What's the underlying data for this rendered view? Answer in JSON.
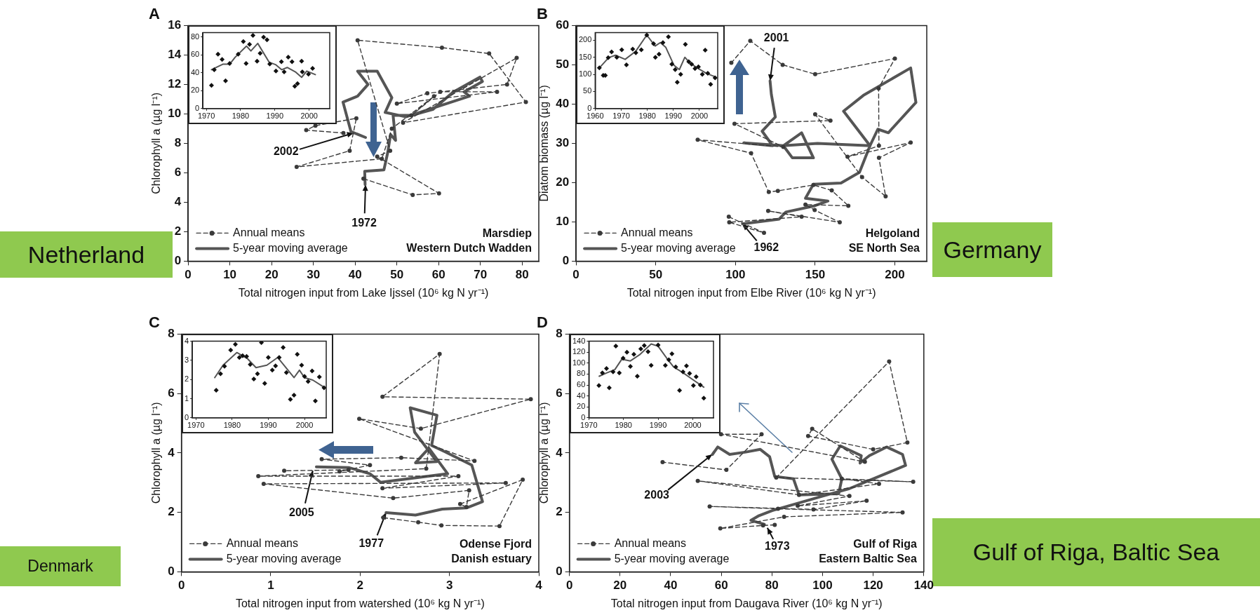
{
  "chart_data": [
    {
      "type": "line",
      "title": "A",
      "xlabel": "Total nitrogen input from Lake Ijssel (10⁶ kg N yr⁻¹)",
      "ylabel": "Chlorophyll a (µg l⁻¹)",
      "xlim": [
        0,
        84
      ],
      "ylim": [
        0,
        16
      ],
      "xticks": [
        0,
        10,
        20,
        30,
        40,
        50,
        60,
        70,
        80
      ],
      "yticks": [
        0,
        2,
        4,
        6,
        8,
        10,
        12,
        14,
        16
      ],
      "grid": false,
      "legend": "bottom left",
      "series": [
        {
          "name": "Annual means",
          "color": "#3a3a3a",
          "line_style": "dashed",
          "marker": "circle",
          "x": [
            42.0,
            53.8,
            60.1,
            45.3,
            48.4,
            40.6,
            60.8,
            72.1,
            80.9,
            51.5,
            78.7,
            76.4,
            57.3,
            50.0,
            74.0,
            60.4,
            53.5,
            58.9,
            48.8,
            46.4,
            26.0,
            38.7,
            40.3,
            30.5,
            28.3,
            37.2
          ],
          "values": [
            5.6,
            4.5,
            4.6,
            7.1,
            7.5,
            15.0,
            14.5,
            14.1,
            10.8,
            9.4,
            13.8,
            12.0,
            11.4,
            10.7,
            11.5,
            11.5,
            9.9,
            11.2,
            9.0,
            6.95,
            6.4,
            7.5,
            9.7,
            9.2,
            8.9,
            8.7
          ]
        },
        {
          "name": "5-year moving average",
          "color": "#555555",
          "line_style": "solid",
          "marker": "none",
          "x": [
            42.4,
            42.3,
            46.9,
            47.8,
            48.5,
            49.7,
            49.1,
            53.5,
            58.6,
            63.6,
            69.9,
            70.5,
            66.1,
            67.4,
            52.2,
            47.2,
            48.8,
            45.3,
            40.6,
            43.1,
            40.6,
            37.1,
            39.0,
            42.5
          ],
          "values": [
            5.2,
            6.1,
            6.2,
            7.35,
            8.6,
            8.2,
            9.9,
            9.9,
            10.3,
            11.5,
            12.5,
            12.2,
            11.5,
            11.2,
            9.8,
            10.1,
            11.1,
            12.9,
            12.9,
            12.0,
            11.2,
            10.8,
            8.8,
            8.4
          ]
        }
      ],
      "annotations": [
        {
          "text": "2002",
          "x": 39.6,
          "y": 8.7
        },
        {
          "text": "1972",
          "x": 42.5,
          "y": 5.2
        },
        "Marsdiep",
        "Western Dutch Wadden",
        "Netherland"
      ]
    },
    {
      "type": "line",
      "xlim": [
        1969,
        2006
      ],
      "ylim": [
        0,
        85
      ],
      "xticks": [
        1970,
        1980,
        1990,
        2000
      ],
      "yticks": [
        0,
        20,
        40,
        60,
        80
      ],
      "grid": false,
      "series": [
        {
          "type": "scatter",
          "color": "#111111",
          "marker": "diamond",
          "x": [
            1971.5,
            1972.3,
            1973.4,
            1974.6,
            1975.6,
            1976.8,
            1979.3,
            1980.8,
            1981.6,
            1982.6,
            1983.6,
            1984.8,
            1985.7,
            1986.7,
            1987.7,
            1988.5,
            1990.3,
            1991.9,
            1992.7,
            1993.9,
            1995.0,
            1995.8,
            1996.6,
            1997.8,
            1998.0,
            1999.8,
            2001.0
          ],
          "values": [
            26,
            43.5,
            61,
            55,
            31,
            50.5,
            61,
            75,
            50.5,
            72,
            82,
            53,
            62,
            80,
            77,
            50,
            42,
            52.5,
            41,
            57.5,
            52.5,
            25,
            28,
            53,
            41,
            38.5,
            45
          ]
        },
        {
          "type": "line",
          "color": "#555555",
          "line_style": "solid",
          "marker": "none",
          "x": [
            1971.5,
            1974.8,
            1976.8,
            1978.4,
            1981.7,
            1983.0,
            1985.0,
            1988.3,
            1990.3,
            1992.0,
            1993.6,
            1996.1,
            1997.8,
            1999.3,
            2001.8
          ],
          "values": [
            43.5,
            49.7,
            49.7,
            57.5,
            70,
            64.5,
            73,
            52,
            49,
            43.5,
            46,
            40.7,
            35,
            42,
            38
          ]
        }
      ]
    },
    {
      "type": "line",
      "title": "B",
      "xlabel": "Total nitrogen input from Elbe River (10⁶ kg N yr⁻¹)",
      "ylabel": "Diatom biomass (µg l⁻¹)",
      "xlim": [
        0,
        220
      ],
      "ylim": [
        0,
        60
      ],
      "xticks": [
        0,
        50,
        100,
        150,
        200
      ],
      "yticks": [
        0,
        10,
        20,
        30,
        40,
        50,
        60
      ],
      "grid": false,
      "legend": "bottom left",
      "series": [
        {
          "name": "Annual means",
          "color": "#3a3a3a",
          "line_style": "dashed",
          "marker": "circle",
          "x": [
            95.8,
            117.9,
            96.1,
            141.5,
            120.5,
            165.4,
            149.7,
            143.9,
            170.8,
            160.4,
            148.9,
            126.6,
            120.9,
            109.8,
            76.3,
            130.0,
            99.4,
            159.6,
            150.0,
            179.4,
            194.2,
            190.0,
            209.9,
            170.3,
            190.0,
            189.8,
            200.0,
            150.0,
            129.6,
            109.3,
            97.4
          ],
          "values": [
            11.3,
            7.2,
            9.9,
            11.3,
            12.8,
            9.9,
            13.0,
            14.4,
            14.1,
            18.0,
            19.4,
            17.9,
            17.6,
            27.5,
            30.9,
            29.1,
            35.0,
            35.8,
            37.4,
            21.4,
            16.5,
            26.3,
            30.2,
            26.6,
            29.4,
            44.0,
            51.6,
            47.6,
            50.0,
            56.1,
            50.5
          ]
        },
        {
          "name": "5-year moving average",
          "color": "#555555",
          "line_style": "solid",
          "marker": "none",
          "x": [
            104.4,
            127.4,
            131.6,
            149.7,
            158.0,
            143.9,
            148.9,
            166.2,
            177.8,
            184.4,
            189.3,
            195.9,
            213.2,
            209.9,
            180.2,
            167.8,
            184.4,
            151.4,
            130.0,
            141.5,
            148.9,
            135.7,
            130.0,
            105.2,
            123.3,
            116.7,
            125.0,
            122.5,
            121.7
          ],
          "values": [
            9.5,
            10.7,
            12.5,
            14.1,
            15.3,
            16.0,
            19.6,
            19.9,
            22.6,
            29.4,
            33.6,
            32.7,
            40.4,
            49.2,
            42.2,
            38.2,
            29.4,
            30.0,
            29.4,
            32.7,
            26.3,
            26.3,
            29.4,
            30.1,
            29.4,
            33.1,
            36.7,
            42.5,
            45.9
          ]
        }
      ],
      "annotations": [
        {
          "text": "2001",
          "x": 121.7,
          "y": 45.9
        },
        {
          "text": "1962",
          "x": 104.4,
          "y": 9.5
        },
        "Helgoland",
        "SE North Sea",
        "Germany"
      ]
    },
    {
      "type": "line",
      "xlim": [
        1960,
        2007
      ],
      "ylim": [
        0,
        222
      ],
      "xticks": [
        1960,
        1970,
        1980,
        1990,
        2000
      ],
      "yticks": [
        0,
        50,
        100,
        150,
        200
      ],
      "grid": false,
      "series": [
        {
          "type": "scatter",
          "color": "#111111",
          "marker": "diamond",
          "x": [
            1961.6,
            1963.1,
            1963.9,
            1965.0,
            1966.3,
            1968.3,
            1970.2,
            1972.0,
            1974.4,
            1975.6,
            1977.7,
            1979.8,
            1982.4,
            1983.1,
            1984.5,
            1986.0,
            1988.1,
            1989.4,
            1990.7,
            1991.5,
            1992.8,
            1994.6,
            1995.9,
            1997.0,
            1998.3,
            1999.6,
            2001.1,
            2002.2,
            2003.2,
            2004.3,
            2006.0
          ],
          "values": [
            119,
            97,
            97,
            149,
            166,
            150,
            172,
            128,
            174,
            163,
            172,
            215,
            190,
            150,
            159,
            193,
            210,
            130,
            114,
            77,
            100,
            188,
            137,
            130,
            117,
            122,
            100,
            171,
            103,
            71,
            90
          ]
        },
        {
          "type": "line",
          "color": "#555555",
          "line_style": "solid",
          "marker": "none",
          "x": [
            1961.6,
            1965.2,
            1967.8,
            1971.5,
            1975.6,
            1979.8,
            1983.0,
            1985.0,
            1987.1,
            1990.2,
            1992.3,
            1994.4,
            1996.5,
            1999.6,
            2002.7,
            2006.3
          ],
          "values": [
            119,
            149,
            156,
            144,
            168,
            215,
            183,
            193,
            179,
            127,
            114,
            150,
            132,
            117,
            103,
            92
          ]
        }
      ]
    },
    {
      "type": "line",
      "title": "C",
      "xlabel": "Total nitrogen input from watershed (10⁶ kg N yr⁻¹)",
      "ylabel": "Chlorophyll a (µg l⁻¹)",
      "xlim": [
        0,
        4
      ],
      "ylim": [
        0,
        8
      ],
      "xticks": [
        0,
        1,
        2,
        3,
        4
      ],
      "yticks": [
        0,
        2,
        4,
        6,
        8
      ],
      "grid": false,
      "legend": "bottom left",
      "series": [
        {
          "name": "Annual means",
          "color": "#3a3a3a",
          "line_style": "dashed",
          "marker": "circle",
          "x": [
            2.26,
            2.65,
            2.91,
            3.56,
            3.82,
            3.12,
            3.19,
            3.22,
            2.37,
            0.92,
            3.63,
            2.25,
            3.1,
            0.86,
            2.74,
            2.89,
            2.25,
            3.91,
            2.68,
            1.99,
            3.28,
            2.46,
            1.57,
            2.11,
            1.77,
            1.87,
            1.15
          ],
          "values": [
            1.82,
            1.67,
            1.56,
            1.54,
            3.1,
            2.28,
            2.18,
            2.74,
            2.48,
            2.96,
            2.99,
            2.81,
            3.22,
            3.22,
            3.47,
            7.33,
            5.89,
            5.81,
            4.82,
            5.15,
            3.73,
            3.84,
            3.79,
            3.59,
            3.38,
            3.43,
            3.4
          ]
        },
        {
          "name": "5-year moving average",
          "color": "#555555",
          "line_style": "solid",
          "marker": "none",
          "x": [
            2.29,
            2.62,
            2.92,
            3.19,
            3.37,
            3.25,
            2.95,
            2.8,
            2.86,
            2.56,
            2.61,
            2.86,
            2.62,
            2.77,
            2.98,
            2.23,
            2.11,
            1.87,
            1.51
          ],
          "values": [
            1.99,
            1.91,
            2.11,
            2.15,
            2.36,
            3.59,
            4.04,
            4.25,
            5.27,
            5.52,
            4.7,
            3.71,
            3.67,
            4.16,
            3.3,
            3.01,
            3.3,
            3.51,
            3.53
          ]
        }
      ],
      "annotations": [
        {
          "text": "2005",
          "x": 1.47,
          "y": 3.4
        },
        {
          "text": "1977",
          "x": 2.29,
          "y": 1.99
        },
        "Odense Fjord",
        "Danish estuary",
        "Denmark"
      ]
    },
    {
      "type": "line",
      "xlim": [
        1969,
        2006
      ],
      "ylim": [
        0,
        4
      ],
      "xticks": [
        1970,
        1980,
        1990,
        2000
      ],
      "yticks": [
        0,
        1,
        2,
        3,
        4
      ],
      "grid": false,
      "series": [
        {
          "type": "scatter",
          "color": "#111111",
          "marker": "diamond",
          "x": [
            1975.6,
            1976.8,
            1977.9,
            1979.6,
            1980.9,
            1982.0,
            1982.9,
            1984.0,
            1985.0,
            1986.0,
            1987.0,
            1988.1,
            1989.0,
            1990.0,
            1991.1,
            1992.0,
            1993.0,
            1994.1,
            1995.0,
            1996.1,
            1997.1,
            1998.0,
            1999.2,
            2000.0,
            2001.0,
            2002.1,
            2003.0,
            2004.1,
            2005.4
          ],
          "values": [
            1.44,
            2.3,
            2.69,
            3.54,
            3.84,
            3.15,
            3.24,
            3.21,
            2.79,
            2.03,
            2.3,
            3.93,
            1.8,
            3.15,
            2.49,
            2.71,
            3.15,
            3.67,
            2.36,
            0.96,
            1.18,
            3.32,
            2.75,
            2.16,
            1.9,
            2.45,
            0.88,
            2.14,
            1.57
          ]
        },
        {
          "type": "line",
          "color": "#555555",
          "line_style": "solid",
          "marker": "none",
          "x": [
            1975.2,
            1977.5,
            1981.3,
            1984.3,
            1986.6,
            1989.6,
            1992.6,
            1997.1,
            1998.6,
            2000.0,
            2002.3,
            2005.6
          ],
          "values": [
            2.1,
            2.75,
            3.41,
            3.08,
            2.62,
            2.75,
            3.15,
            2.1,
            2.49,
            2.1,
            1.97,
            1.57
          ]
        }
      ]
    },
    {
      "type": "line",
      "title": "D",
      "xlabel": "Total nitrogen input from Daugava River (10⁶ kg N yr⁻¹)",
      "ylabel": "Chlorophyll a (µg l⁻¹)",
      "xlim": [
        0,
        140
      ],
      "ylim": [
        0,
        8
      ],
      "xticks": [
        0,
        20,
        40,
        60,
        80,
        100,
        120,
        140
      ],
      "yticks": [
        0,
        2,
        4,
        6,
        8
      ],
      "grid": false,
      "legend": "bottom left",
      "series": [
        {
          "name": "Annual means",
          "color": "#3a3a3a",
          "line_style": "dashed",
          "marker": "circle",
          "x": [
            81.1,
            76.5,
            59.6,
            84.8,
            131.6,
            82.4,
            55.4,
            96.4,
            117.4,
            90.2,
            110.6,
            50.7,
            90.7,
            122.3,
            107.6,
            135.8,
            81.7,
            126.3,
            133.5,
            120.0,
            94.3,
            95.9,
            116.7,
            59.9,
            75.9,
            62.0,
            36.8
          ],
          "values": [
            1.58,
            1.56,
            1.46,
            1.85,
            2.0,
            2.12,
            2.2,
            2.1,
            2.39,
            2.22,
            2.55,
            3.06,
            2.59,
            2.96,
            3.13,
            3.03,
            3.17,
            7.08,
            4.35,
            4.12,
            4.57,
            4.81,
            3.7,
            4.63,
            4.63,
            3.43,
            3.69
          ]
        },
        {
          "name": "5-year moving average",
          "color": "#555555",
          "line_style": "solid",
          "marker": "none",
          "x": [
            77.0,
            71.7,
            74.9,
            80.1,
            100.1,
            110.6,
            132.8,
            131.6,
            125.3,
            118.5,
            114.8,
            115.3,
            107.0,
            103.7,
            107.6,
            106.4,
            90.7,
            88.5,
            81.1,
            79.1,
            75.4,
            69.7,
            63.3,
            58.6,
            56.5
          ],
          "values": [
            1.6,
            1.73,
            1.89,
            2.06,
            2.55,
            2.8,
            3.58,
            3.95,
            4.2,
            3.91,
            3.66,
            3.91,
            4.24,
            3.79,
            3.13,
            2.63,
            2.59,
            3.13,
            3.21,
            3.87,
            4.12,
            4.03,
            3.95,
            4.2,
            3.95
          ]
        }
      ],
      "annotations": [
        {
          "text": "2003",
          "x": 56.4,
          "y": 3.95
        },
        {
          "text": "1973",
          "x": 78.2,
          "y": 1.48
        },
        "Gulf of Riga",
        "Eastern Baltic Sea",
        "Gulf of Riga, Baltic Sea"
      ]
    },
    {
      "type": "line",
      "xlim": [
        1970,
        2006
      ],
      "ylim": [
        0,
        140
      ],
      "xticks": [
        1970,
        1980,
        1990,
        2000
      ],
      "yticks": [
        0,
        20,
        40,
        60,
        80,
        100,
        120,
        140
      ],
      "grid": false,
      "series": [
        {
          "type": "scatter",
          "color": "#111111",
          "marker": "diamond",
          "x": [
            1972.9,
            1973.9,
            1975.1,
            1975.9,
            1977.0,
            1977.8,
            1978.8,
            1979.9,
            1981.0,
            1982.0,
            1983.0,
            1984.0,
            1985.0,
            1986.0,
            1987.1,
            1988.0,
            1990.0,
            1992.1,
            1993.1,
            1994.0,
            1995.1,
            1996.2,
            1997.2,
            1998.2,
            1999.1,
            2000.2,
            2001.0,
            2002.2,
            2003.2
          ],
          "values": [
            59,
            82,
            90,
            55,
            84,
            131,
            82,
            109,
            120,
            94,
            116,
            76,
            126,
            132,
            121,
            96,
            133,
            96,
            106,
            117,
            93,
            50,
            84,
            95,
            81,
            59,
            75,
            60,
            36
          ]
        },
        {
          "type": "line",
          "color": "#555555",
          "line_style": "solid",
          "marker": "none",
          "x": [
            1973.0,
            1975.1,
            1977.5,
            1979.5,
            1982.0,
            1984.8,
            1988.0,
            1990.0,
            1992.5,
            1994.5,
            1997.3,
            2000.0,
            2003.2
          ],
          "values": [
            76,
            82,
            88,
            107,
            104,
            116,
            135,
            131,
            109,
            93,
            82,
            70,
            56
          ]
        }
      ]
    }
  ]
}
